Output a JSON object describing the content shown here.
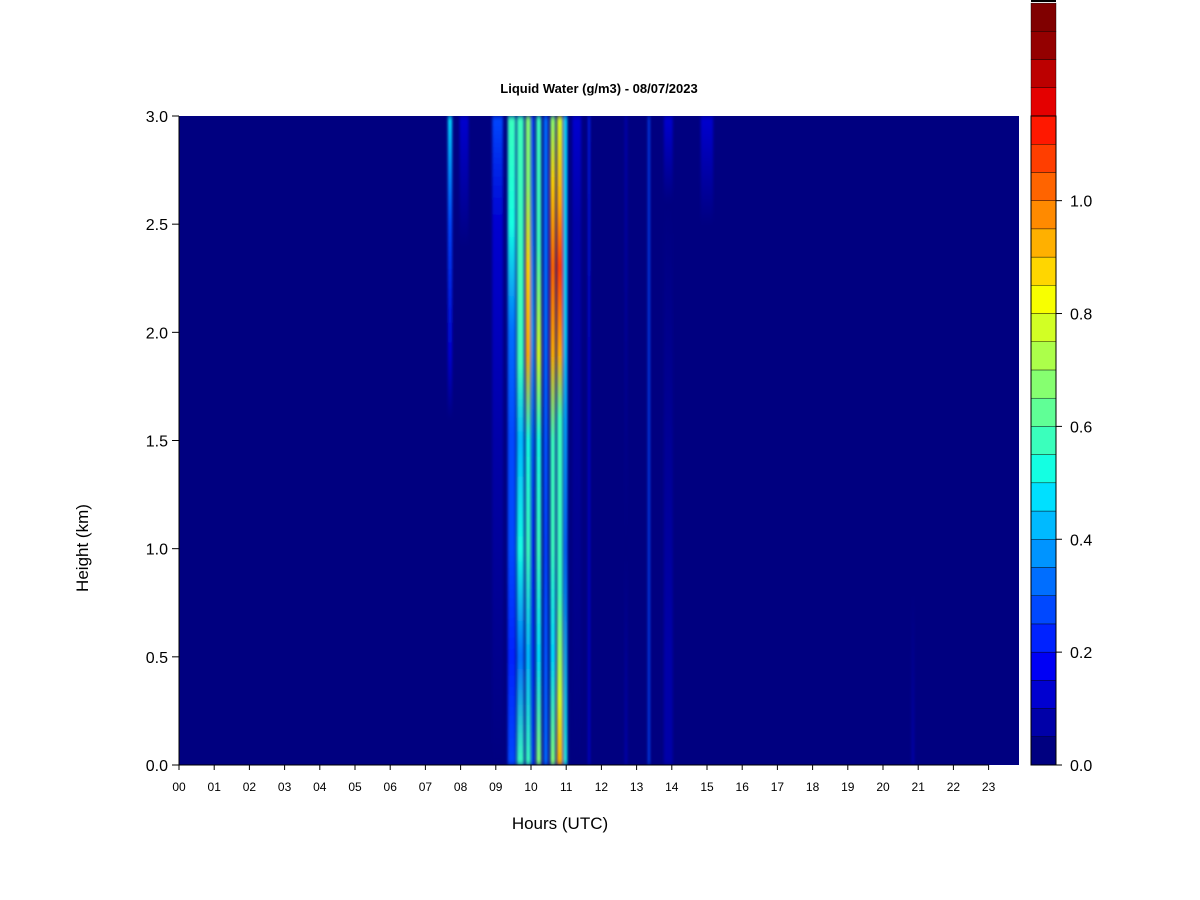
{
  "chart_data": {
    "type": "heatmap",
    "title": "Liquid Water (g/m3) - 08/07/2023",
    "xlabel": "Hours (UTC)",
    "ylabel": "Height (km)",
    "xlim": [
      0,
      23.9
    ],
    "ylim": [
      0,
      3.0
    ],
    "x_ticks": [
      "00",
      "01",
      "02",
      "03",
      "04",
      "05",
      "06",
      "07",
      "08",
      "09",
      "10",
      "11",
      "12",
      "13",
      "14",
      "15",
      "16",
      "17",
      "18",
      "19",
      "20",
      "21",
      "22",
      "23"
    ],
    "y_ticks": [
      "0.0",
      "0.5",
      "1.0",
      "1.5",
      "2.0",
      "2.5",
      "3.0"
    ],
    "colorbar": {
      "min": 0.0,
      "max": 1.1,
      "step": 0.05,
      "ticks": [
        "0.0",
        "0.2",
        "0.4",
        "0.6",
        "0.8",
        "1.0"
      ],
      "colors": [
        "#000080",
        "#0000a8",
        "#0000d0",
        "#0000f5",
        "#0022ff",
        "#0048ff",
        "#006eff",
        "#0094ff",
        "#00baff",
        "#00e0ff",
        "#14ffe2",
        "#3affbc",
        "#60ff96",
        "#86ff70",
        "#acff4a",
        "#d2ff24",
        "#f8ff00",
        "#ffd600",
        "#ffb000",
        "#ff8a00",
        "#ff6400",
        "#ff3e00",
        "#ff1800",
        "#e40000",
        "#bc0000",
        "#940000",
        "#800000"
      ]
    },
    "background_value": 0.0,
    "columns": [
      {
        "hour": 7.7,
        "width": 0.12,
        "profile": [
          [
            0.0,
            0.0
          ],
          [
            1.6,
            0.0
          ],
          [
            1.9,
            0.15
          ],
          [
            2.5,
            0.3
          ],
          [
            3.0,
            0.45
          ]
        ]
      },
      {
        "hour": 8.1,
        "width": 0.25,
        "profile": [
          [
            0.0,
            0.0
          ],
          [
            2.4,
            0.0
          ],
          [
            3.0,
            0.12
          ]
        ]
      },
      {
        "hour": 9.05,
        "width": 0.3,
        "profile": [
          [
            0.0,
            0.0
          ],
          [
            1.5,
            0.05
          ],
          [
            2.5,
            0.15
          ],
          [
            3.0,
            0.3
          ]
        ]
      },
      {
        "hour": 9.45,
        "width": 0.22,
        "profile": [
          [
            0.0,
            0.3
          ],
          [
            0.5,
            0.2
          ],
          [
            1.0,
            0.3
          ],
          [
            1.5,
            0.25
          ],
          [
            2.0,
            0.35
          ],
          [
            2.5,
            0.5
          ],
          [
            3.0,
            0.55
          ]
        ]
      },
      {
        "hour": 9.7,
        "width": 0.2,
        "profile": [
          [
            0.0,
            0.55
          ],
          [
            0.5,
            0.35
          ],
          [
            1.0,
            0.5
          ],
          [
            1.5,
            0.4
          ],
          [
            1.85,
            0.6
          ],
          [
            2.2,
            0.6
          ],
          [
            2.6,
            0.55
          ],
          [
            3.0,
            0.6
          ]
        ]
      },
      {
        "hour": 9.92,
        "width": 0.14,
        "profile": [
          [
            0.0,
            0.6
          ],
          [
            0.5,
            0.4
          ],
          [
            1.0,
            0.55
          ],
          [
            1.5,
            0.5
          ],
          [
            1.9,
            0.95
          ],
          [
            2.3,
            0.85
          ],
          [
            2.7,
            0.7
          ],
          [
            3.0,
            0.65
          ]
        ]
      },
      {
        "hour": 10.05,
        "width": 0.08,
        "profile": [
          [
            0.0,
            0.25
          ],
          [
            1.0,
            0.2
          ],
          [
            2.0,
            0.4
          ],
          [
            3.0,
            0.3
          ]
        ]
      },
      {
        "hour": 10.22,
        "width": 0.14,
        "profile": [
          [
            0.0,
            0.7
          ],
          [
            0.5,
            0.45
          ],
          [
            1.0,
            0.6
          ],
          [
            1.5,
            0.5
          ],
          [
            1.9,
            0.75
          ],
          [
            2.4,
            0.6
          ],
          [
            3.0,
            0.55
          ]
        ]
      },
      {
        "hour": 10.42,
        "width": 0.12,
        "profile": [
          [
            0.0,
            0.35
          ],
          [
            1.0,
            0.3
          ],
          [
            2.0,
            0.35
          ],
          [
            3.0,
            0.35
          ]
        ]
      },
      {
        "hour": 10.62,
        "width": 0.14,
        "profile": [
          [
            0.0,
            0.65
          ],
          [
            0.5,
            0.45
          ],
          [
            1.0,
            0.6
          ],
          [
            1.5,
            0.55
          ],
          [
            1.9,
            0.9
          ],
          [
            2.3,
            1.0
          ],
          [
            2.7,
            0.85
          ],
          [
            3.0,
            0.7
          ]
        ]
      },
      {
        "hour": 10.82,
        "width": 0.16,
        "profile": [
          [
            0.0,
            0.9
          ],
          [
            0.3,
            0.75
          ],
          [
            0.8,
            0.6
          ],
          [
            1.2,
            0.55
          ],
          [
            1.6,
            0.6
          ],
          [
            1.9,
            0.95
          ],
          [
            2.3,
            1.05
          ],
          [
            2.6,
            0.95
          ],
          [
            3.0,
            0.75
          ]
        ]
      },
      {
        "hour": 10.98,
        "width": 0.1,
        "profile": [
          [
            0.0,
            0.5
          ],
          [
            1.0,
            0.35
          ],
          [
            2.0,
            0.45
          ],
          [
            3.0,
            0.45
          ]
        ]
      },
      {
        "hour": 11.3,
        "width": 0.25,
        "profile": [
          [
            0.0,
            0.0
          ],
          [
            2.5,
            0.05
          ],
          [
            3.0,
            0.15
          ]
        ]
      },
      {
        "hour": 11.65,
        "width": 0.05,
        "profile": [
          [
            0.0,
            0.12
          ],
          [
            1.5,
            0.15
          ],
          [
            3.0,
            0.2
          ]
        ]
      },
      {
        "hour": 12.7,
        "width": 0.08,
        "profile": [
          [
            0.0,
            0.05
          ],
          [
            1.0,
            0.03
          ],
          [
            3.0,
            0.05
          ]
        ]
      },
      {
        "hour": 13.35,
        "width": 0.05,
        "profile": [
          [
            0.0,
            0.28
          ],
          [
            1.5,
            0.3
          ],
          [
            3.0,
            0.3
          ]
        ]
      },
      {
        "hour": 13.9,
        "width": 0.25,
        "profile": [
          [
            0.0,
            0.05
          ],
          [
            0.5,
            0.05
          ],
          [
            2.6,
            0.0
          ],
          [
            3.0,
            0.15
          ]
        ]
      },
      {
        "hour": 14.98,
        "width": 0.04,
        "profile": [
          [
            0.0,
            0.35
          ],
          [
            1.5,
            0.38
          ],
          [
            3.0,
            0.4
          ]
        ]
      },
      {
        "hour": 15.0,
        "width": 0.35,
        "profile": [
          [
            0.0,
            0.0
          ],
          [
            2.5,
            0.0
          ],
          [
            3.0,
            0.15
          ]
        ]
      },
      {
        "hour": 20.85,
        "width": 0.08,
        "profile": [
          [
            0.0,
            0.08
          ],
          [
            0.8,
            0.03
          ],
          [
            1.0,
            0.0
          ],
          [
            3.0,
            0.0
          ]
        ]
      }
    ]
  }
}
